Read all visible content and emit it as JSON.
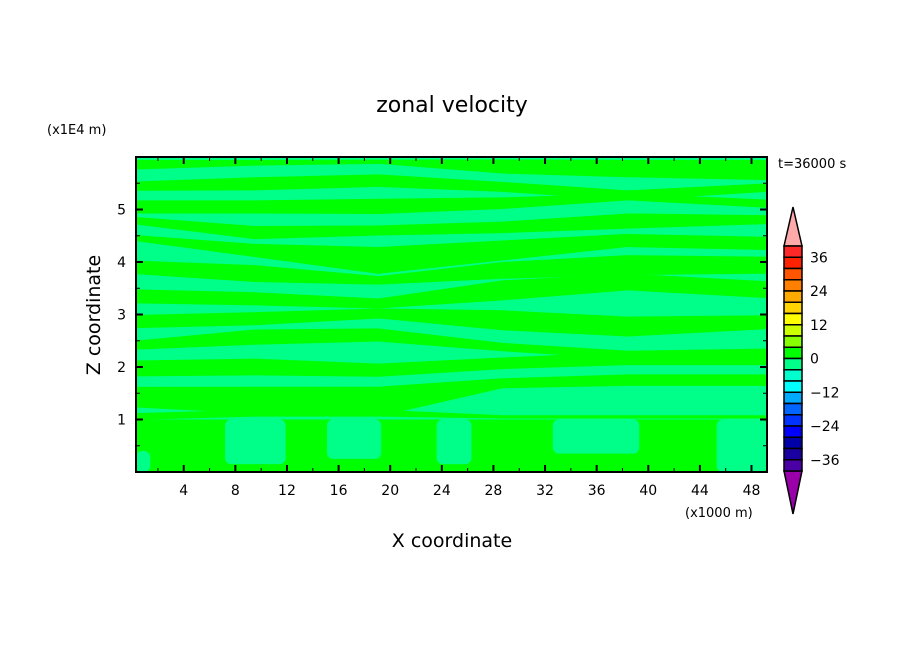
{
  "chart_data": {
    "type": "heatmap",
    "subtype": "filled-contour",
    "title": "zonal velocity",
    "xlabel": "X coordinate",
    "ylabel": "Z coordinate",
    "x_unit_label": "(x1000 m)",
    "y_unit_label": "(x1E4 m)",
    "time_label": "t=36000 s",
    "xlim": [
      0.3,
      49.2
    ],
    "ylim": [
      0,
      6
    ],
    "x_ticks": [
      4,
      8,
      12,
      16,
      20,
      24,
      28,
      32,
      36,
      40,
      44,
      48
    ],
    "x_tick_labels": [
      "4",
      "8",
      "12",
      "16",
      "20",
      "24",
      "28",
      "32",
      "36",
      "40",
      "44",
      "48"
    ],
    "y_ticks": [
      1,
      2,
      3,
      4,
      5
    ],
    "y_tick_labels": [
      "1",
      "2",
      "3",
      "4",
      "5"
    ],
    "grid": false,
    "field_colors": {
      "positive_0_to_4": "#00ff00",
      "negative_-4_to_0": "#00ff88"
    },
    "positive_bands": {
      "x": [
        0.3,
        9.5,
        19.1,
        28.7,
        38.4,
        49.2
      ],
      "bands": [
        {
          "z_center": [
            5.85,
            5.89,
            5.91,
            5.82,
            5.78,
            5.75
          ],
          "thickness": [
            0.19,
            0.11,
            0.08,
            0.27,
            0.33,
            0.39
          ]
        },
        {
          "z_center": [
            5.44,
            5.49,
            5.55,
            5.43,
            5.27,
            5.43
          ],
          "thickness": [
            0.17,
            0.25,
            0.24,
            0.19,
            0.19,
            0.16
          ]
        },
        {
          "z_center": [
            5.05,
            5.05,
            5.06,
            5.12,
            5.24,
            5.1
          ],
          "thickness": [
            0.25,
            0.25,
            0.29,
            0.22,
            0.13,
            0.16
          ]
        },
        {
          "z_center": [
            4.81,
            4.56,
            4.6,
            4.66,
            4.78,
            4.81
          ],
          "thickness": [
            0.13,
            0.25,
            0.19,
            0.22,
            0.29,
            0.16
          ]
        },
        {
          "z_center": [
            4.48,
            4.22,
            4.03,
            4.22,
            4.41,
            4.35
          ],
          "thickness": [
            0.1,
            0.25,
            0.51,
            0.38,
            0.25,
            0.25
          ]
        },
        {
          "z_center": [
            3.91,
            3.78,
            3.65,
            3.84,
            3.94,
            3.94
          ],
          "thickness": [
            0.25,
            0.32,
            0.16,
            0.32,
            0.38,
            0.32
          ]
        },
        {
          "z_center": [
            3.35,
            3.3,
            3.21,
            3.46,
            3.62,
            3.46
          ],
          "thickness": [
            0.27,
            0.25,
            0.19,
            0.38,
            0.32,
            0.32
          ]
        },
        {
          "z_center": [
            2.86,
            2.92,
            3.02,
            2.89,
            2.77,
            2.86
          ],
          "thickness": [
            0.25,
            0.25,
            0.19,
            0.38,
            0.38,
            0.25
          ]
        },
        {
          "z_center": [
            2.4,
            2.57,
            2.61,
            2.38,
            2.23,
            2.26
          ],
          "thickness": [
            0.16,
            0.29,
            0.25,
            0.16,
            0.16,
            0.19
          ]
        },
        {
          "z_center": [
            1.97,
            2.0,
            1.94,
            2.07,
            2.16,
            2.16
          ],
          "thickness": [
            0.3,
            0.32,
            0.25,
            0.22,
            0.25,
            0.25
          ]
        },
        {
          "z_center": [
            1.43,
            1.37,
            1.34,
            1.69,
            1.75,
            1.75
          ],
          "thickness": [
            0.38,
            0.51,
            0.57,
            0.19,
            0.22,
            0.22
          ]
        },
        {
          "z_center": [
            1.05,
            1.12,
            1.12,
            1.05,
            1.05,
            1.05
          ],
          "thickness": [
            0.13,
            0.13,
            0.13,
            0.06,
            0.06,
            0.06
          ]
        }
      ],
      "lower_layer_z": [
        0,
        1
      ],
      "lower_layer_negative_columns": [
        {
          "x": [
            0.3,
            1.4
          ],
          "z": [
            0,
            0.4
          ]
        },
        {
          "x": [
            7.2,
            11.9
          ],
          "z": [
            0.15,
            1
          ]
        },
        {
          "x": [
            15.1,
            19.3
          ],
          "z": [
            0.25,
            1
          ]
        },
        {
          "x": [
            23.6,
            26.3
          ],
          "z": [
            0.15,
            1
          ]
        },
        {
          "x": [
            32.6,
            39.3
          ],
          "z": [
            0.35,
            1
          ]
        },
        {
          "x": [
            45.3,
            49.2
          ],
          "z": [
            0,
            1
          ]
        }
      ]
    },
    "colorbar": {
      "levels": [
        40,
        36,
        32,
        28,
        24,
        20,
        16,
        12,
        8,
        4,
        0,
        -4,
        -8,
        -12,
        -16,
        -20,
        -24,
        -28,
        -32,
        -36,
        -40
      ],
      "labels": [
        "36",
        "24",
        "12",
        "0",
        "-12",
        "-24",
        "-36"
      ],
      "label_values": [
        36,
        24,
        12,
        0,
        -12,
        -24,
        -36
      ],
      "colors": [
        "#ff2828",
        "#ff2200",
        "#ff5500",
        "#ff7f00",
        "#ffaa00",
        "#ffd400",
        "#ffff00",
        "#ccff00",
        "#88ff00",
        "#00ff00",
        "#00ff88",
        "#00ffcc",
        "#00ffff",
        "#00aaff",
        "#0066ff",
        "#0033ff",
        "#0000ff",
        "#0000aa",
        "#1a00a0",
        "#4b00a6"
      ],
      "over_color": "#ffaaaa",
      "under_color": "#9900aa"
    }
  }
}
